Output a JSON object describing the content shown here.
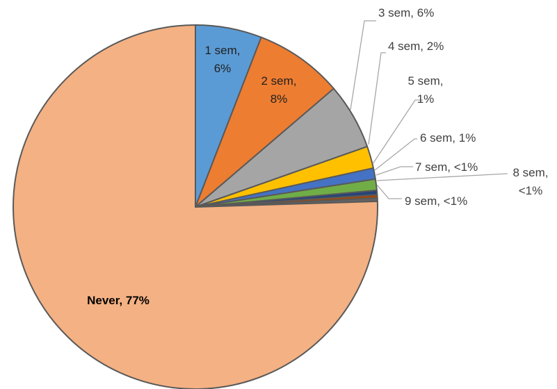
{
  "chart_data": {
    "type": "pie",
    "title": "",
    "legend": "none",
    "start_angle_deg": 0,
    "direction": "clockwise",
    "slices": [
      {
        "name": "1 sem",
        "value": 6,
        "label": [
          "1 sem,",
          "6%"
        ],
        "color": "#5b9bd5"
      },
      {
        "name": "2 sem",
        "value": 8,
        "label": [
          "2 sem,",
          "8%"
        ],
        "color": "#ed7d31"
      },
      {
        "name": "3 sem",
        "value": 6,
        "label": [
          "3 sem, 6%"
        ],
        "color": "#a5a5a5"
      },
      {
        "name": "4 sem",
        "value": 2,
        "label": [
          "4 sem, 2%"
        ],
        "color": "#ffc000"
      },
      {
        "name": "5 sem",
        "value": 1,
        "label": [
          "5 sem,",
          "1%"
        ],
        "color": "#4472c4"
      },
      {
        "name": "6 sem",
        "value": 1,
        "label": [
          "6 sem, 1%"
        ],
        "color": "#70ad47"
      },
      {
        "name": "7 sem",
        "value": 0.4,
        "label": [
          "7 sem, <1%"
        ],
        "color": "#264478"
      },
      {
        "name": "8 sem",
        "value": 0.3,
        "label": [
          "8 sem,",
          "<1%"
        ],
        "color": "#9e480e"
      },
      {
        "name": "9 sem",
        "value": 0.3,
        "label": [
          "9 sem, <1%"
        ],
        "color": "#636363"
      },
      {
        "name": "Never",
        "value": 77,
        "label": [
          "Never, 77%"
        ],
        "color": "#f4b183"
      }
    ]
  }
}
